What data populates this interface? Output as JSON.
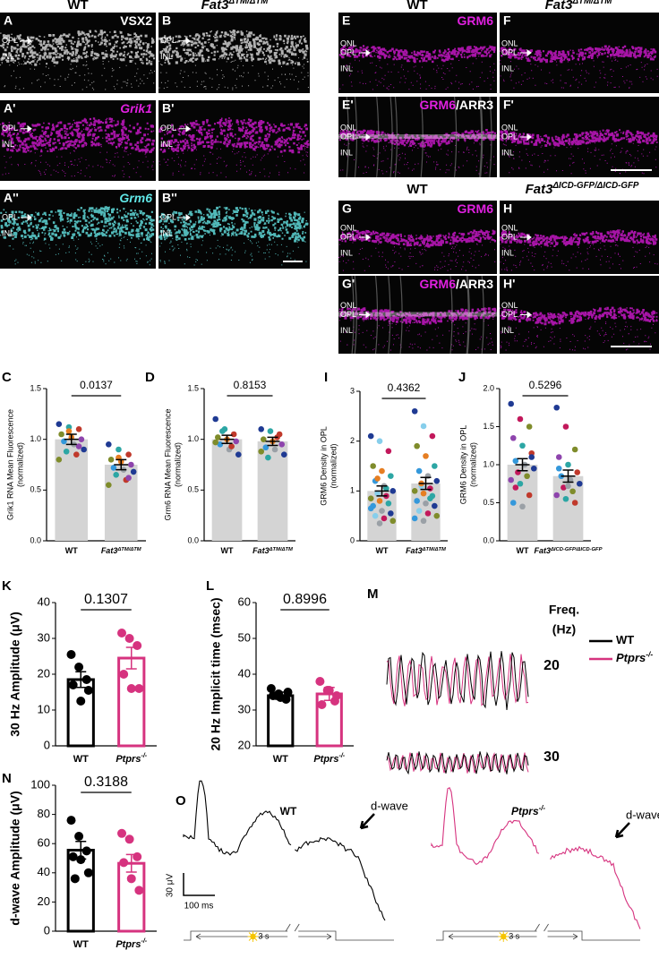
{
  "chart_data": [
    {
      "type": "bar",
      "panel": "C",
      "annotation": "0.0137",
      "ylabel": [
        "Grik1 RNA Mean Fluorescence",
        "(normalized)"
      ],
      "categories": [
        "WT",
        "Fat3"
      ],
      "category_sup": [
        null,
        "ΔTM/ΔTM"
      ],
      "values": [
        1.0,
        0.75
      ],
      "errors": [
        0.05,
        0.05
      ],
      "points": [
        [
          1.15,
          1.12,
          1.1,
          1.05,
          1.02,
          1.0,
          0.98,
          0.95,
          0.9,
          0.88,
          0.85,
          0.8,
          1.08,
          0.93
        ],
        [
          0.95,
          0.9,
          0.85,
          0.8,
          0.78,
          0.75,
          0.72,
          0.7,
          0.68,
          0.65,
          0.6,
          0.55,
          0.82,
          0.62
        ]
      ],
      "ylim": [
        0,
        1.5
      ],
      "yticks": [
        {
          "value": 0,
          "label": "0.0"
        },
        {
          "value": 0.5,
          "label": "0.5"
        },
        {
          "value": 1,
          "label": "1.0"
        },
        {
          "value": 1.5,
          "label": "1.5"
        }
      ],
      "bar_style": "filled",
      "bar_colors": [
        "#d4d4d4",
        "#d4d4d4"
      ],
      "point_colors": [
        "#1f3a93",
        "#2ca6a4",
        "#c0392b",
        "#7f8c2b",
        "#e67e22",
        "#8e44ad",
        "#3498db",
        "#9aa0a6"
      ]
    },
    {
      "type": "bar",
      "panel": "D",
      "annotation": "0.8153",
      "ylabel": [
        "Grm6 RNA Mean Fluorescence",
        "(normalized)"
      ],
      "categories": [
        "WT",
        "Fat3"
      ],
      "category_sup": [
        null,
        "ΔTM/ΔTM"
      ],
      "values": [
        1.0,
        0.98
      ],
      "errors": [
        0.04,
        0.04
      ],
      "points": [
        [
          1.2,
          1.1,
          1.05,
          1.02,
          1.0,
          0.98,
          0.95,
          0.9,
          0.85,
          1.08,
          0.93,
          0.97
        ],
        [
          1.1,
          1.08,
          1.05,
          1.0,
          0.98,
          0.95,
          0.92,
          0.9,
          0.85,
          0.82,
          1.02,
          0.88
        ]
      ],
      "ylim": [
        0,
        1.5
      ],
      "yticks": [
        {
          "value": 0,
          "label": "0.0"
        },
        {
          "value": 0.5,
          "label": "0.5"
        },
        {
          "value": 1,
          "label": "1.0"
        },
        {
          "value": 1.5,
          "label": "1.5"
        }
      ],
      "bar_style": "filled",
      "bar_colors": [
        "#d4d4d4",
        "#d4d4d4"
      ],
      "point_colors": [
        "#1f3a93",
        "#2ca6a4",
        "#c0392b",
        "#7f8c2b",
        "#e67e22",
        "#8e44ad",
        "#3498db",
        "#9aa0a6"
      ]
    },
    {
      "type": "bar",
      "panel": "I",
      "annotation": "0.4362",
      "ylabel": [
        "GRM6 Density in OPL",
        "(normalized)"
      ],
      "categories": [
        "WT",
        "Fat3"
      ],
      "category_sup": [
        null,
        "ΔTM/ΔTM"
      ],
      "values": [
        1.0,
        1.15
      ],
      "errors": [
        0.1,
        0.12
      ],
      "points": [
        [
          2.1,
          2.0,
          1.8,
          1.5,
          1.4,
          1.3,
          1.2,
          1.1,
          1.0,
          0.95,
          0.9,
          0.85,
          0.8,
          0.75,
          0.7,
          0.6,
          0.55,
          0.5,
          0.45,
          0.4,
          1.25,
          1.05,
          0.65,
          0.35
        ],
        [
          2.6,
          2.3,
          2.1,
          1.9,
          1.7,
          1.5,
          1.4,
          1.3,
          1.2,
          1.1,
          1.05,
          1.0,
          0.95,
          0.9,
          0.8,
          0.75,
          0.7,
          0.6,
          0.55,
          0.5,
          1.15,
          0.85,
          0.45,
          0.4
        ]
      ],
      "ylim": [
        0,
        3
      ],
      "yticks": [
        0,
        1,
        2,
        3
      ],
      "bar_style": "filled",
      "bar_colors": [
        "#d4d4d4",
        "#d4d4d4"
      ],
      "point_colors": [
        "#1f3a93",
        "#87ceeb",
        "#c2185b",
        "#7f8c2b",
        "#e67e22",
        "#2ca6a4",
        "#3498db",
        "#9aa0a6"
      ]
    },
    {
      "type": "bar",
      "panel": "J",
      "annotation": "0.5296",
      "ylabel": [
        "GRM6 Density in OPL",
        "(normalized)"
      ],
      "categories": [
        "WT",
        "Fat3"
      ],
      "category_sup": [
        null,
        "ΔICD-GFP/ΔICD-GFP"
      ],
      "values": [
        1.0,
        0.85
      ],
      "errors": [
        0.08,
        0.08
      ],
      "points": [
        [
          1.8,
          1.6,
          1.5,
          1.35,
          1.25,
          1.15,
          1.05,
          1.0,
          0.95,
          0.9,
          0.85,
          0.8,
          0.75,
          0.6,
          0.5,
          0.45,
          1.1,
          0.7
        ],
        [
          1.75,
          1.5,
          1.2,
          1.1,
          1.0,
          0.9,
          0.85,
          0.8,
          0.75,
          0.7,
          0.65,
          0.6,
          0.55,
          0.5,
          0.95,
          0.72
        ]
      ],
      "ylim": [
        0,
        2
      ],
      "yticks": [
        {
          "value": 0,
          "label": "0.0"
        },
        {
          "value": 0.5,
          "label": "0.5"
        },
        {
          "value": 1,
          "label": "1.0"
        },
        {
          "value": 1.5,
          "label": "1.5"
        },
        {
          "value": 2,
          "label": "2.0"
        }
      ],
      "bar_style": "filled",
      "bar_colors": [
        "#d4d4d4",
        "#d4d4d4"
      ],
      "point_colors": [
        "#1f3a93",
        "#c2185b",
        "#7f8c2b",
        "#8e44ad",
        "#2ca6a4",
        "#c0392b",
        "#3498db",
        "#9aa0a6"
      ]
    },
    {
      "type": "bar",
      "panel": "K",
      "annotation": "0.1307",
      "ylabel": [
        "30 Hz Amplitude (μV)"
      ],
      "categories": [
        "WT",
        "Ptprs"
      ],
      "category_sup": [
        null,
        "-/-"
      ],
      "values": [
        18.5,
        24.5
      ],
      "errors": [
        2.2,
        3.0
      ],
      "points": [
        [
          25.5,
          22,
          18.5,
          17,
          12.5,
          15.5
        ],
        [
          31.5,
          30,
          28,
          20,
          16,
          16
        ]
      ],
      "ylim": [
        0,
        40
      ],
      "yticks": [
        0,
        10,
        20,
        30,
        40
      ],
      "bar_style": "outline",
      "bar_colors": [
        "#000000",
        "#d6337f"
      ]
    },
    {
      "type": "bar",
      "panel": "L",
      "annotation": "0.8996",
      "ylabel": [
        "20 Hz Implicit time (msec)"
      ],
      "categories": [
        "WT",
        "Ptprs"
      ],
      "category_sup": [
        null,
        "-/-"
      ],
      "values": [
        34,
        34.5
      ],
      "errors": [
        1.0,
        1.8
      ],
      "points": [
        [
          36,
          34.5,
          33,
          34,
          33.5,
          35
        ],
        [
          38,
          35.5,
          32.5,
          31.5,
          35.5,
          34
        ]
      ],
      "ylim": [
        20,
        60
      ],
      "yticks": [
        20,
        30,
        40,
        50,
        60
      ],
      "bar_style": "outline",
      "bar_colors": [
        "#000000",
        "#d6337f"
      ]
    },
    {
      "type": "bar",
      "panel": "N",
      "annotation": "0.3188",
      "ylabel": [
        "d-wave Amplitude (μV)"
      ],
      "categories": [
        "WT",
        "Ptprs"
      ],
      "category_sup": [
        null,
        "-/-"
      ],
      "values": [
        55.5,
        46.5
      ],
      "errors": [
        6,
        6
      ],
      "points": [
        [
          76,
          65,
          55,
          51,
          49,
          40,
          36
        ],
        [
          67,
          63,
          51,
          47,
          36,
          28
        ]
      ],
      "ylim": [
        0,
        100
      ],
      "yticks": [
        0,
        20,
        40,
        60,
        80,
        100
      ],
      "bar_style": "outline",
      "bar_colors": [
        "#000000",
        "#d6337f"
      ]
    }
  ],
  "micrographs": {
    "headers": [
      {
        "text": "WT"
      },
      {
        "text": "Fat3",
        "sup": "ΔTM/ΔTM"
      },
      {
        "text": "WT"
      },
      {
        "text": "Fat3",
        "sup": "ΔTM/ΔTM"
      },
      {
        "text": "WT"
      },
      {
        "text": "Fat3",
        "sup": "ΔICD-GFP/ΔICD-GFP"
      }
    ],
    "panels": [
      {
        "letter": "A",
        "stain": [
          {
            "text": "VSX2",
            "color": "#ffffff"
          }
        ],
        "layers": [
          "OPL",
          "INL"
        ]
      },
      {
        "letter": "B",
        "layers": [
          "OPL",
          "INL"
        ]
      },
      {
        "letter": "A'",
        "stain": [
          {
            "text": "Grik1",
            "color": "#e020e0",
            "italic": true
          }
        ],
        "layers": [
          "OPL",
          "INL"
        ]
      },
      {
        "letter": "B'",
        "layers": [
          "OPL",
          "INL"
        ]
      },
      {
        "letter": "A''",
        "stain": [
          {
            "text": "Grm6",
            "color": "#60e6e6",
            "italic": true
          }
        ],
        "layers": [
          "OPL",
          "INL"
        ]
      },
      {
        "letter": "B''",
        "layers": [
          "OPL",
          "INL"
        ]
      },
      {
        "letter": "E",
        "stain": [
          {
            "text": "GRM6",
            "color": "#e020e0"
          }
        ],
        "layers": [
          "ONL",
          "OPL",
          "INL"
        ]
      },
      {
        "letter": "F",
        "layers": [
          "ONL",
          "OPL",
          "INL"
        ]
      },
      {
        "letter": "E'",
        "stain": [
          {
            "text": "GRM6",
            "color": "#e020e0"
          },
          {
            "text": "/ARR3",
            "color": "#ffffff"
          }
        ],
        "layers": [
          "ONL",
          "OPL",
          "INL"
        ]
      },
      {
        "letter": "F'",
        "layers": [
          "ONL",
          "OPL",
          "INL"
        ]
      },
      {
        "letter": "G",
        "stain": [
          {
            "text": "GRM6",
            "color": "#e020e0"
          }
        ],
        "layers": [
          "ONL",
          "OPL",
          "INL"
        ]
      },
      {
        "letter": "H",
        "layers": [
          "ONL",
          "OPL",
          "INL"
        ]
      },
      {
        "letter": "G'",
        "stain": [
          {
            "text": "GRM6",
            "color": "#e020e0"
          },
          {
            "text": "/ARR3",
            "color": "#ffffff"
          }
        ],
        "layers": [
          "ONL",
          "OPL",
          "INL"
        ]
      },
      {
        "letter": "H'",
        "layers": [
          "ONL",
          "OPL",
          "INL"
        ]
      }
    ]
  },
  "traces": {
    "M": {
      "panel": "M",
      "freq_label": [
        "Freq.",
        "(Hz)"
      ],
      "frequencies": [
        "20",
        "30"
      ],
      "legend": [
        {
          "name": "WT",
          "color": "#000000"
        },
        {
          "name": "Ptprs",
          "sup": "-/-",
          "color": "#d6337f"
        }
      ]
    },
    "O": {
      "panel": "O",
      "groups": [
        {
          "name": "WT",
          "color": "#000000"
        },
        {
          "name": "Ptprs",
          "sup": "-/-",
          "color": "#d6337f"
        }
      ],
      "marker": "d-wave",
      "scale_y": "30 μV",
      "scale_x": "100 ms",
      "stimulus": "3 s"
    }
  }
}
